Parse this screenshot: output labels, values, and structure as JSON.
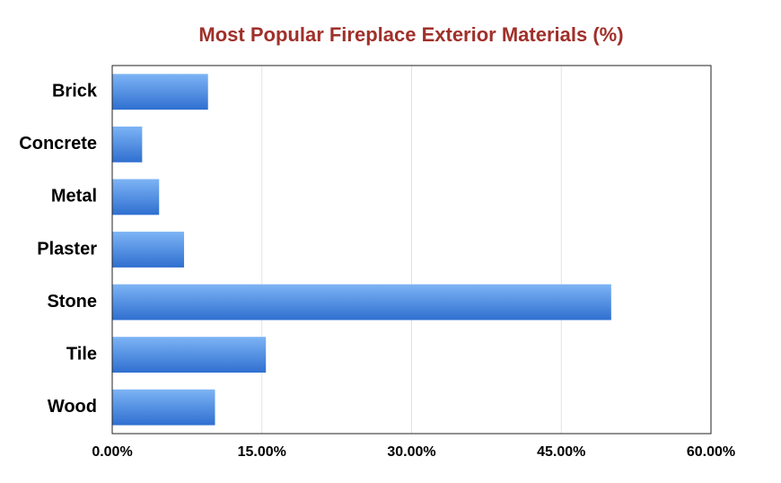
{
  "chart_data": {
    "type": "hbar",
    "title": "Most Popular Fireplace Exterior Materials (%)",
    "categories": [
      "Brick",
      "Concrete",
      "Metal",
      "Plaster",
      "Stone",
      "Tile",
      "Wood"
    ],
    "values": [
      9.6,
      3.0,
      4.7,
      7.2,
      50.0,
      15.4,
      10.3
    ],
    "color": "#2f6fd0",
    "xlim": [
      0,
      60
    ],
    "xticks": [
      {
        "value": 0,
        "label": "0.00%"
      },
      {
        "value": 15,
        "label": "15.00%"
      },
      {
        "value": 30,
        "label": "30.00%"
      },
      {
        "value": 45,
        "label": "45.00%"
      },
      {
        "value": 60,
        "label": "60.00%"
      }
    ],
    "grid": true
  }
}
